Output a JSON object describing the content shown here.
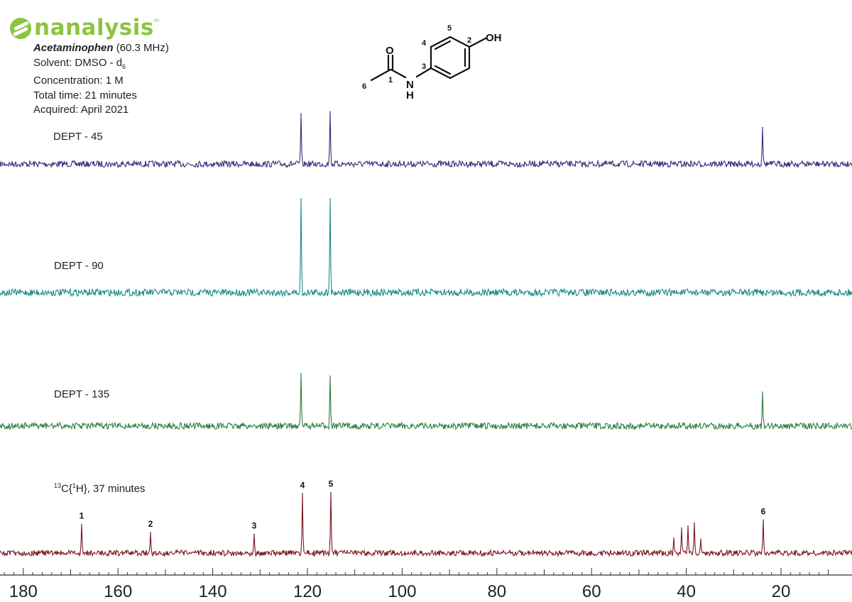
{
  "logo": {
    "text": "nanalysis",
    "mark": "tm"
  },
  "info": {
    "compound": "Acetaminophen",
    "frequency": "(60.3 MHz)",
    "solvent_prefix": "Solvent: DMSO - d",
    "solvent_sub": "6",
    "concentration": "Concentration: 1 M",
    "total_time": "Total time: 21 minutes",
    "acquired": "Acquired: April 2021"
  },
  "structure": {
    "oh": "OH",
    "o": "O",
    "n": "N",
    "h": "H",
    "carbon_numbers": [
      "1",
      "2",
      "3",
      "4",
      "5",
      "6"
    ]
  },
  "chart_data": {
    "type": "line",
    "title": "",
    "xlabel": "",
    "ylabel": "",
    "xlim": [
      180,
      10
    ],
    "x_reversed": true,
    "xticks": [
      180,
      160,
      140,
      120,
      100,
      80,
      60,
      40,
      20
    ],
    "grid": false,
    "series": [
      {
        "name": "DEPT - 45",
        "color": "#3b2a78",
        "peaks": [
          {
            "x": 121.3,
            "height": 0.77
          },
          {
            "x": 115.2,
            "height": 0.8
          },
          {
            "x": 23.9,
            "height": 0.56
          }
        ]
      },
      {
        "name": "DEPT - 90",
        "color": "#1a8a8a",
        "peaks": [
          {
            "x": 121.3,
            "height": 1.0
          },
          {
            "x": 115.2,
            "height": 1.0
          }
        ]
      },
      {
        "name": "DEPT - 135",
        "color": "#2e7d3e",
        "peaks": [
          {
            "x": 121.3,
            "height": 0.82
          },
          {
            "x": 115.2,
            "height": 0.78
          },
          {
            "x": 23.9,
            "height": 0.53
          }
        ]
      },
      {
        "name_sup1": "13",
        "name_mid": "C{",
        "name_sup2": "1",
        "name_end": "H}, 37 minutes",
        "color": "#7a1620",
        "peaks": [
          {
            "x": 167.7,
            "height": 0.46,
            "label": "1"
          },
          {
            "x": 153.1,
            "height": 0.33,
            "label": "2"
          },
          {
            "x": 131.2,
            "height": 0.3,
            "label": "3"
          },
          {
            "x": 121.0,
            "height": 0.95,
            "label": "4"
          },
          {
            "x": 115.0,
            "height": 0.97,
            "label": "5"
          },
          {
            "x": 42.6,
            "height": 0.24
          },
          {
            "x": 41.0,
            "height": 0.4
          },
          {
            "x": 39.6,
            "height": 0.43
          },
          {
            "x": 38.3,
            "height": 0.48
          },
          {
            "x": 37.0,
            "height": 0.22
          },
          {
            "x": 23.8,
            "height": 0.53,
            "label": "6"
          }
        ]
      }
    ]
  }
}
